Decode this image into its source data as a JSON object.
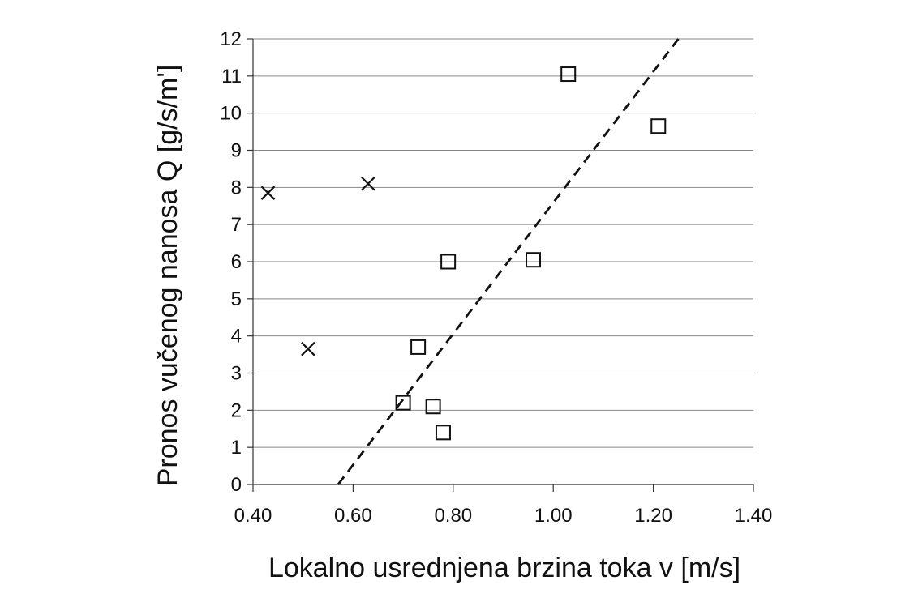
{
  "chart_data": {
    "type": "scatter",
    "xlabel": "Lokalno usrednjena brzina toka  v [m/s]",
    "ylabel": "Pronos vučenog nanosa  Q  [g/s/m']",
    "xlim": [
      0.4,
      1.4
    ],
    "ylim": [
      0,
      12
    ],
    "x_ticks": [
      "0.40",
      "0.60",
      "0.80",
      "1.00",
      "1.20",
      "1.40"
    ],
    "y_ticks": [
      "0",
      "1",
      "2",
      "3",
      "4",
      "5",
      "6",
      "7",
      "8",
      "9",
      "10",
      "11",
      "12"
    ],
    "grid": "horizontal",
    "legend": "none",
    "series": [
      {
        "marker": "square",
        "points": [
          {
            "x": 0.7,
            "y": 2.2
          },
          {
            "x": 0.73,
            "y": 3.7
          },
          {
            "x": 0.76,
            "y": 2.1
          },
          {
            "x": 0.78,
            "y": 1.4
          },
          {
            "x": 0.79,
            "y": 6.0
          },
          {
            "x": 0.96,
            "y": 6.05
          },
          {
            "x": 1.03,
            "y": 11.05
          },
          {
            "x": 1.21,
            "y": 9.65
          }
        ]
      },
      {
        "marker": "cross",
        "points": [
          {
            "x": 0.43,
            "y": 7.85
          },
          {
            "x": 0.51,
            "y": 3.65
          },
          {
            "x": 0.63,
            "y": 8.1
          }
        ]
      }
    ],
    "trendline": {
      "style": "dashed",
      "points": [
        {
          "x": 0.57,
          "y": 0
        },
        {
          "x": 1.25,
          "y": 12
        }
      ]
    }
  }
}
